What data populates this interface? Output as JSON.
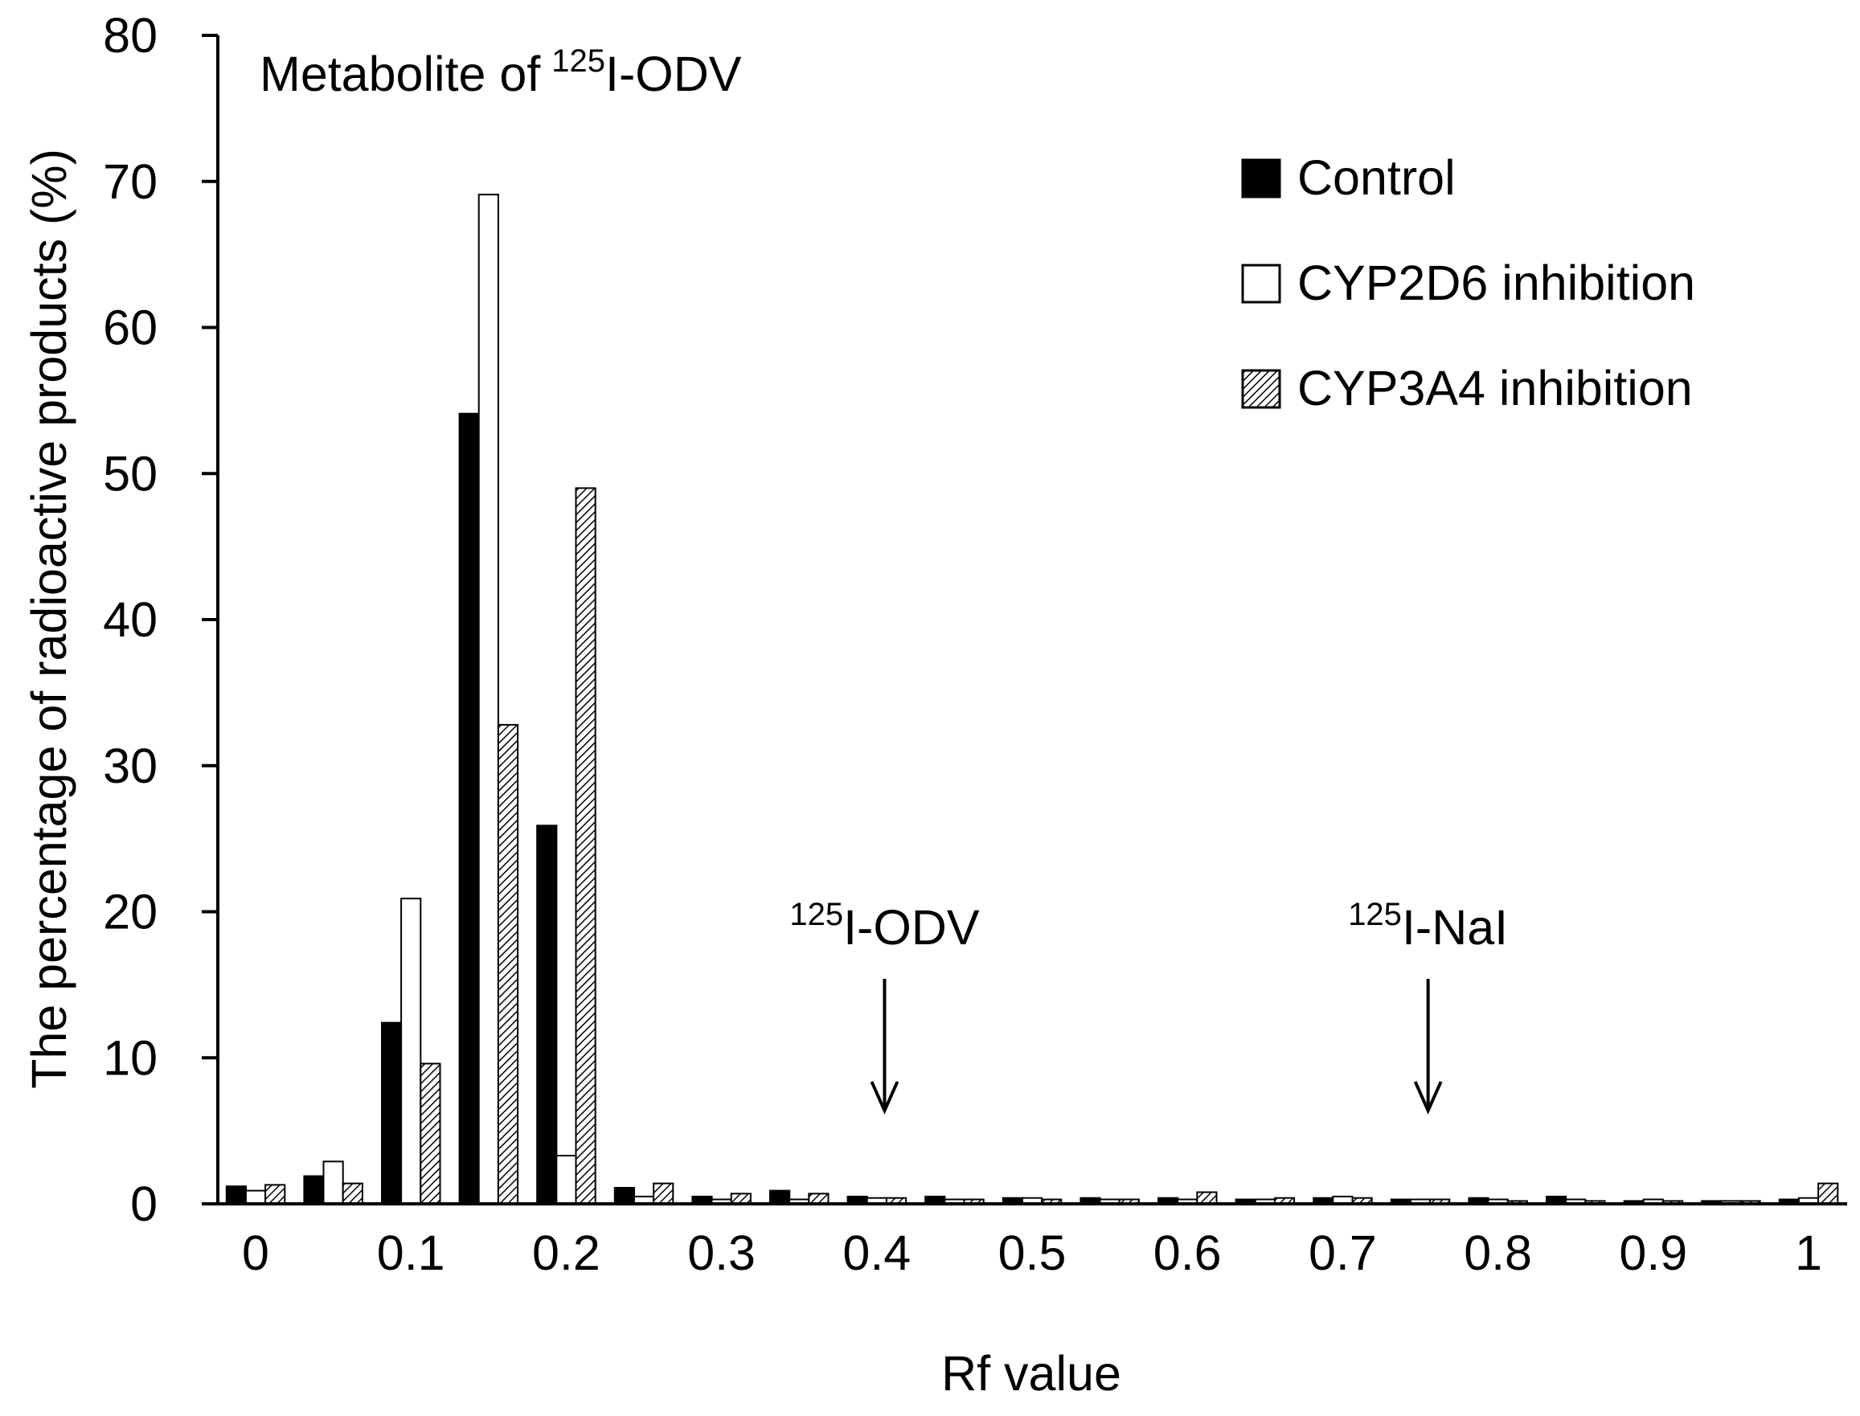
{
  "chart_data": {
    "type": "bar",
    "title": "Metabolite of",
    "title_sup": "125",
    "title_rest": "I-ODV",
    "xlabel": "Rf value",
    "ylabel": "The percentage of radioactive products (%)",
    "ylim": [
      0,
      80
    ],
    "yticks": [
      0,
      10,
      20,
      30,
      40,
      50,
      60,
      70,
      80
    ],
    "xticks": [
      "0",
      "0.1",
      "0.2",
      "0.3",
      "0.4",
      "0.5",
      "0.6",
      "0.7",
      "0.8",
      "0.9",
      "1"
    ],
    "xrange": [
      0,
      1
    ],
    "bin_width": 0.05,
    "x": [
      0,
      0.05,
      0.1,
      0.15,
      0.2,
      0.25,
      0.3,
      0.35,
      0.4,
      0.45,
      0.5,
      0.55,
      0.6,
      0.65,
      0.7,
      0.75,
      0.8,
      0.85,
      0.9,
      0.95,
      1.0
    ],
    "series": [
      {
        "name": "Control",
        "pattern": "solid",
        "values": [
          1.2,
          1.9,
          12.4,
          54.1,
          25.9,
          1.1,
          0.5,
          0.9,
          0.5,
          0.5,
          0.4,
          0.4,
          0.4,
          0.3,
          0.4,
          0.3,
          0.4,
          0.5,
          0.2,
          0.2,
          0.3
        ]
      },
      {
        "name": "CYP2D6 inhibition",
        "pattern": "open",
        "values": [
          0.9,
          2.9,
          20.9,
          69.1,
          3.3,
          0.5,
          0.3,
          0.3,
          0.4,
          0.3,
          0.4,
          0.3,
          0.3,
          0.3,
          0.5,
          0.3,
          0.3,
          0.3,
          0.3,
          0.2,
          0.4
        ]
      },
      {
        "name": "CYP3A4 inhibition",
        "pattern": "hatched",
        "values": [
          1.3,
          1.4,
          9.6,
          32.8,
          49.0,
          1.4,
          0.7,
          0.7,
          0.4,
          0.3,
          0.3,
          0.3,
          0.8,
          0.4,
          0.4,
          0.3,
          0.2,
          0.2,
          0.2,
          0.2,
          1.4
        ]
      }
    ],
    "annotations": [
      {
        "sup": "125",
        "text": "I-ODV",
        "x": 0.405
      },
      {
        "sup": "125",
        "text": "I-NaI",
        "x": 0.755
      }
    ],
    "legend": {
      "location": "top-right"
    },
    "grid": false,
    "colors": {
      "solid": "#000000",
      "open": "#ffffff",
      "hatch": "#000000",
      "axis": "#000000"
    }
  }
}
